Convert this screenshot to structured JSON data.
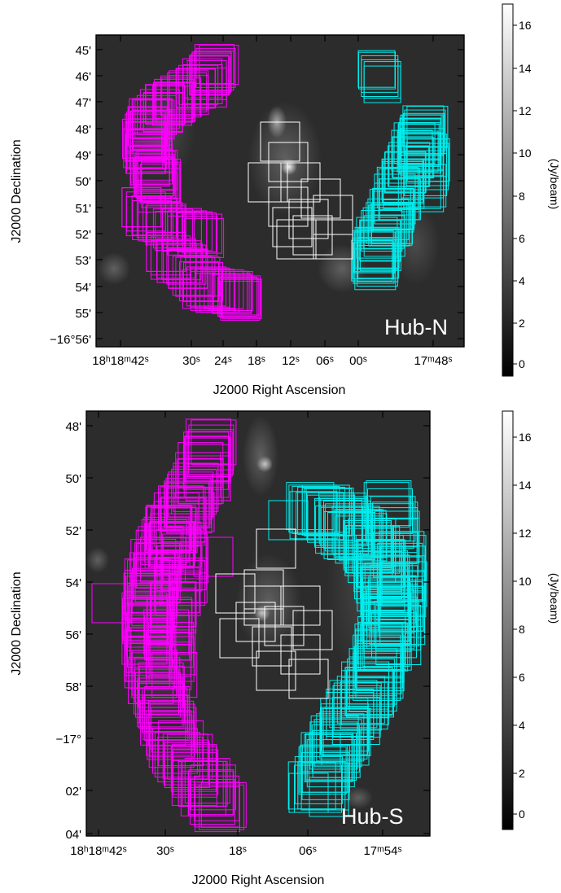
{
  "panels": [
    {
      "id": "hub-n",
      "label": "Hub-N",
      "xlabel": "J2000 Right Ascension",
      "ylabel": "J2000 Declination",
      "y_ticks": [
        "45'",
        "46'",
        "47'",
        "48'",
        "49'",
        "50'",
        "51'",
        "52'",
        "53'",
        "54'",
        "55'",
        "−16°56'"
      ],
      "x_ticks": [
        "18ʰ18ᵐ42ˢ",
        "30ˢ",
        "24ˢ",
        "18ˢ",
        "12ˢ",
        "06ˢ",
        "00ˢ",
        "17ᵐ48ˢ"
      ],
      "colorbar": {
        "ticks": [
          "16",
          "14",
          "12",
          "10",
          "8",
          "6",
          "4",
          "2",
          "0"
        ],
        "unit": "(Jy/beam)"
      }
    },
    {
      "id": "hub-s",
      "label": "Hub-S",
      "xlabel": "J2000 Right Ascension",
      "ylabel": "J2000 Declination",
      "y_ticks": [
        "48'",
        "50'",
        "52'",
        "54'",
        "56'",
        "58'",
        "−17°",
        "02'",
        "04'"
      ],
      "x_ticks": [
        "18ʰ18ᵐ42ˢ",
        "30ˢ",
        "18ˢ",
        "06ˢ",
        "17ᵐ54ˢ"
      ],
      "colorbar": {
        "ticks": [
          "16",
          "14",
          "12",
          "10",
          "8",
          "6",
          "4",
          "2",
          "0"
        ],
        "unit": "(Jy/beam)"
      }
    }
  ],
  "colors": {
    "magenta": "#ff00ff",
    "cyan": "#00eeee",
    "white": "#ffffff",
    "background": "#2c2c2c"
  }
}
